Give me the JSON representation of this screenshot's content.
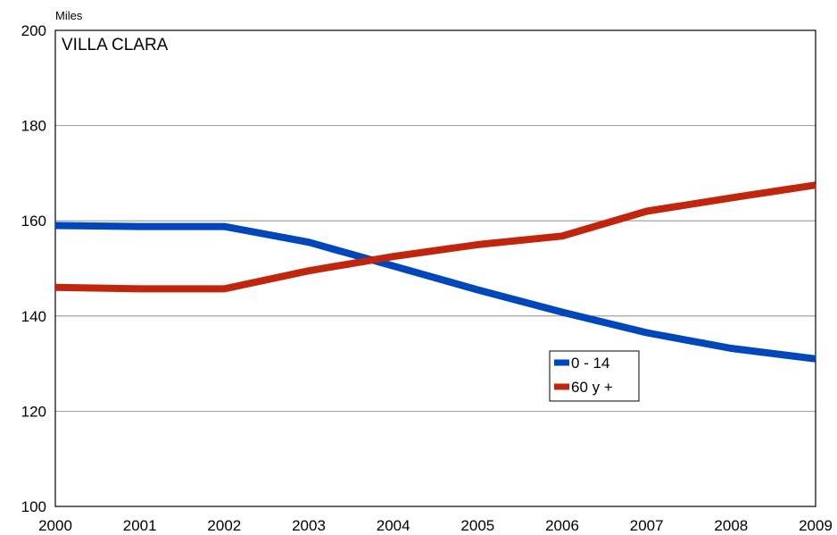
{
  "chart_data": {
    "type": "line",
    "region_label": "VILLA CLARA",
    "unit_label": "Miles",
    "x": [
      "2000",
      "2001",
      "2002",
      "2003",
      "2004",
      "2005",
      "2006",
      "2007",
      "2008",
      "2009"
    ],
    "ylim": [
      100,
      200
    ],
    "yticks": [
      100,
      120,
      140,
      160,
      180,
      200
    ],
    "grid": true,
    "legend_position": "center-right",
    "series": [
      {
        "name": "0 - 14",
        "color": "#0047BB",
        "values": [
          159.0,
          158.8,
          158.8,
          155.5,
          150.5,
          145.5,
          140.8,
          136.5,
          133.2,
          131.0
        ]
      },
      {
        "name": "60 y +",
        "color": "#C0250D",
        "values": [
          146.0,
          145.7,
          145.7,
          149.5,
          152.5,
          155.0,
          156.8,
          162.0,
          164.8,
          167.5
        ]
      }
    ]
  }
}
